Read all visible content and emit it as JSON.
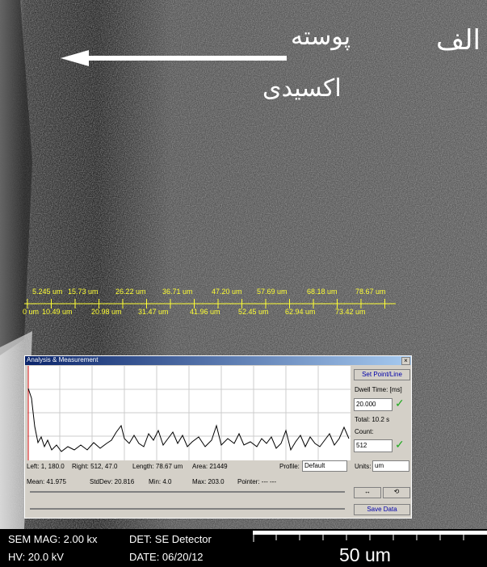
{
  "overlay": {
    "label_letter": "الف",
    "annotation_line1": "پوسته",
    "annotation_line2": "اکسیدی"
  },
  "scale_ruler": {
    "top_labels": [
      "5.245 um",
      "15.73 um",
      "26.22 um",
      "36.71 um",
      "47.20 um",
      "57.69 um",
      "68.18 um",
      "78.67 um"
    ],
    "bottom_labels": [
      "0 um",
      "10.49 um",
      "20.98 um",
      "31.47 um",
      "41.96 um",
      "52.45 um",
      "62.94 um",
      "73.42 um"
    ]
  },
  "window": {
    "title": "Analysis & Measurement",
    "close": "×",
    "set_button": "Set Point/Line",
    "dwell_label": "Dwell Time: [ms]",
    "dwell_value": "20.000",
    "total": "Total: 10.2 s",
    "count_label": "Count:",
    "count_value": "512",
    "stats_row1": [
      "Left: 1,   180.0",
      "Right: 512, 47.0",
      "Length: 78.67 um",
      "Area: 21449"
    ],
    "profile_label": "Profile:",
    "profile_value": "Default",
    "units_label": "Units:",
    "units_value": "um",
    "stats_row2": [
      "Mean: 41.975",
      "StdDev: 20.816",
      "Min: 4.0",
      "Max: 203.0",
      "Pointer: ---   ---"
    ],
    "save_button": "Save Data"
  },
  "footer": {
    "mag": "SEM MAG: 2.00 kx",
    "hv": "HV: 20.0 kV",
    "det": "DET: SE Detector",
    "date": "DATE: 06/20/12",
    "scale": "50 um"
  }
}
